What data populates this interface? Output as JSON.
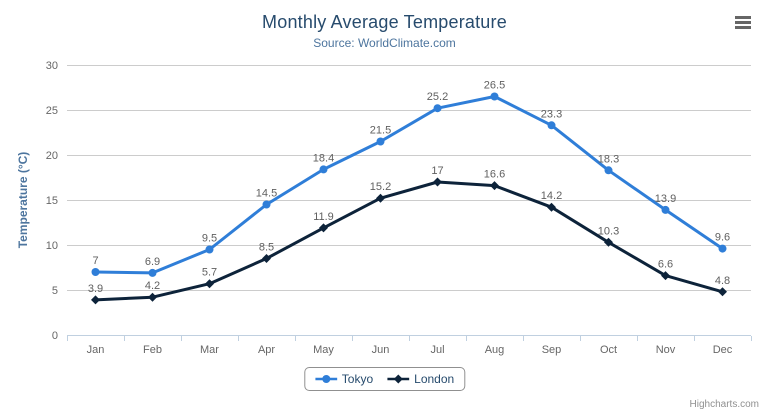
{
  "chart_data": {
    "type": "line",
    "title": "Monthly Average Temperature",
    "subtitle": "Source: WorldClimate.com",
    "categories": [
      "Jan",
      "Feb",
      "Mar",
      "Apr",
      "May",
      "Jun",
      "Jul",
      "Aug",
      "Sep",
      "Oct",
      "Nov",
      "Dec"
    ],
    "series": [
      {
        "name": "Tokyo",
        "color": "#2f7ed8",
        "marker": "circle",
        "values": [
          7,
          6.9,
          9.5,
          14.5,
          18.4,
          21.5,
          25.2,
          26.5,
          23.3,
          18.3,
          13.9,
          9.6
        ]
      },
      {
        "name": "London",
        "color": "#0d233a",
        "marker": "diamond",
        "values": [
          3.9,
          4.2,
          5.7,
          8.5,
          11.9,
          15.2,
          17,
          16.6,
          14.2,
          10.3,
          6.6,
          4.8
        ]
      }
    ],
    "xlabel": "",
    "ylabel": "Temperature (°C)",
    "ylim": [
      0,
      30
    ],
    "yticks": [
      0,
      5,
      10,
      15,
      20,
      25,
      30
    ],
    "grid": true,
    "legend_position": "bottom",
    "data_labels": true
  },
  "theme": {
    "title_color": "#274b6d",
    "subtitle_color": "#4d759e",
    "axis_title_color": "#4d759e",
    "tick_label_color": "#666666",
    "data_label_color": "#606060",
    "grid_color": "#cccccc",
    "axis_line_color": "#c0d0e0",
    "legend_text_color": "#274b6d",
    "legend_border_color": "#909090",
    "menu_icon_color": "#666666",
    "credits_color": "#909090"
  },
  "credits": {
    "label": "Highcharts.com"
  }
}
